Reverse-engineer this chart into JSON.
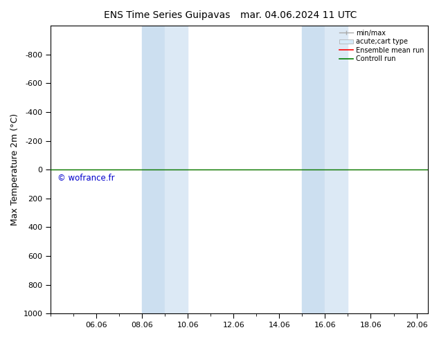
{
  "title_left": "ENS Time Series Guipavas",
  "title_right": "mar. 04.06.2024 11 UTC",
  "ylabel": "Max Temperature 2m (°C)",
  "ylim_top": -1000,
  "ylim_bottom": 1000,
  "yticks": [
    -800,
    -600,
    -400,
    -200,
    0,
    200,
    400,
    600,
    800,
    1000
  ],
  "xlim_start": 4.0,
  "xlim_end": 20.5,
  "xtick_labels": [
    "06.06",
    "08.06",
    "10.06",
    "12.06",
    "14.06",
    "16.06",
    "18.06",
    "20.06"
  ],
  "xtick_positions": [
    6,
    8,
    10,
    12,
    14,
    16,
    18,
    20
  ],
  "shade_bands": [
    {
      "start": 8.0,
      "end": 9.0
    },
    {
      "start": 9.0,
      "end": 10.0
    },
    {
      "start": 15.0,
      "end": 16.0
    },
    {
      "start": 16.0,
      "end": 17.0
    }
  ],
  "shade_colors": [
    "#ccdff0",
    "#dce9f5",
    "#ccdff0",
    "#dce9f5"
  ],
  "green_line_y": 0,
  "red_line_y": 0,
  "watermark": "© wofrance.fr",
  "watermark_color": "#0000cc",
  "legend_labels": [
    "min/max",
    "acute;cart type",
    "Ensemble mean run",
    "Controll run"
  ],
  "background_color": "#ffffff",
  "shade_color": "#d6eaf8",
  "title_fontsize": 10,
  "tick_fontsize": 8,
  "ylabel_fontsize": 9
}
